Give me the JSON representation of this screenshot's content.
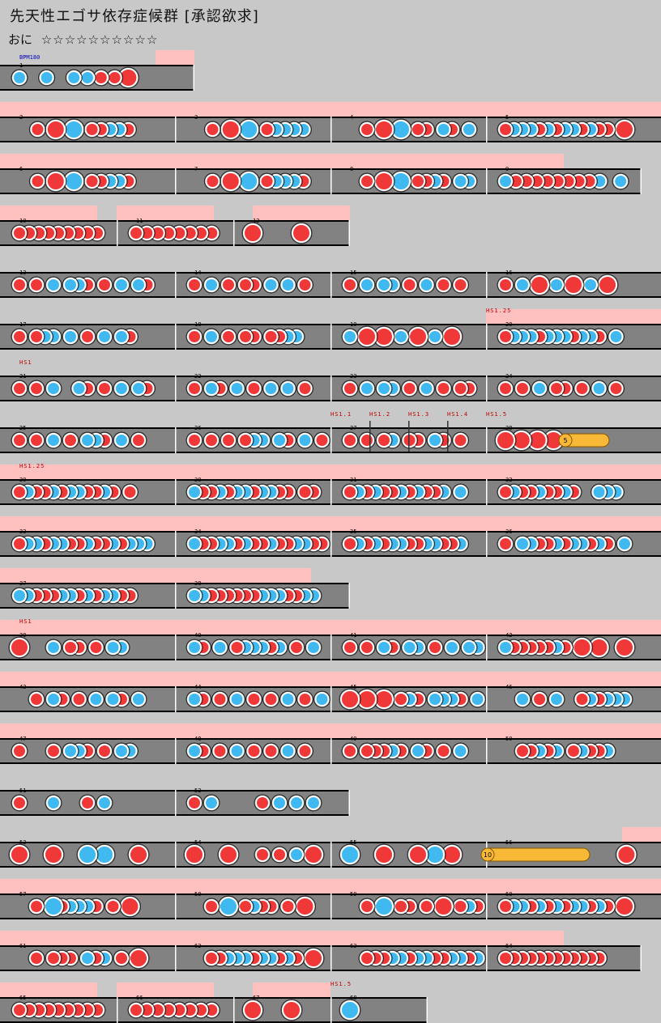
{
  "song": {
    "title": "先天性エゴサ依存症候群 [承認欲求]",
    "difficulty": "おに",
    "stars": "☆☆☆☆☆☆☆☆☆☆"
  },
  "colors": {
    "background": "#c8c8c8",
    "lane": "#828282",
    "gogo": "#ffc0c0",
    "don": "#f03838",
    "ka": "#40b8f0",
    "drumroll": "#f8b838",
    "label": "#000000",
    "bpm_text": "#0000c0",
    "hs_text": "#c00000"
  },
  "annotations": {
    "bpm": "BPM180",
    "hs": [
      "HS1.25",
      "HS1",
      "HS1.1",
      "HS1.2",
      "HS1.3",
      "HS1.4",
      "HS1.5",
      "HS1.25",
      "HS1",
      "HS1.5"
    ]
  },
  "rolls": [
    {
      "count": "5"
    },
    {
      "count": "10"
    }
  ],
  "measures": [
    {
      "n": "1",
      "notes": "k.k.kkddD."
    },
    {
      "n": "2",
      "notes": "..d.D.K.ddkkd.."
    },
    {
      "n": "3",
      "notes": "..d.D.K.dkkkk.."
    },
    {
      "n": "4",
      "notes": "..d.D.K.dd.kd.k."
    },
    {
      "n": "5",
      "notes": "dkkkdkdkkdkdd.D."
    },
    {
      "n": "6",
      "notes": "..d.D.K.ddkkd.."
    },
    {
      "n": "7",
      "notes": "..d.D.K.dkkkd.."
    },
    {
      "n": "8",
      "notes": "..d.D.K.ddkd.kk."
    },
    {
      "n": "9",
      "notes": "kddddddddk.k."
    },
    {
      "n": "10",
      "notes": "ddddddddd."
    },
    {
      "n": "11",
      "notes": "dddddddd."
    },
    {
      "n": "12",
      "notes": "D...D..."
    },
    {
      "n": "13",
      "notes": "d.d.k.kkd.d.k.kd"
    },
    {
      "n": "14",
      "notes": "d.k.d.dd.k.k.d.."
    },
    {
      "n": "15",
      "notes": "d.k.kk.d.k.d.d.."
    },
    {
      "n": "16",
      "notes": "d.k.D.k.D.k.D..."
    },
    {
      "n": "17",
      "notes": "d.dkk.k.d.k.kd.."
    },
    {
      "n": "18",
      "notes": "d.k.d.dd.ddkk..."
    },
    {
      "n": "19",
      "notes": "k.D.D.k.D.k.D..."
    },
    {
      "n": "20",
      "notes": "dkkkdkkkdkkd.k.."
    },
    {
      "n": "21",
      "notes": "d.d.k..kd.d.k.kd"
    },
    {
      "n": "22",
      "notes": "d.kd.k.d.k.k.d.."
    },
    {
      "n": "23",
      "notes": "d.k.kk.d.k.d.dd."
    },
    {
      "n": "24",
      "notes": "d.d.k.dd.d.k.d.."
    },
    {
      "n": "25",
      "notes": "d.d.k.d.kkd.k.d."
    },
    {
      "n": "26",
      "notes": "d.d.d.dkk.kd.k.d"
    },
    {
      "n": "27",
      "notes": "d.d.dk.dd.kd.d.."
    },
    {
      "n": "28",
      "notes": "D.D.D.D.........."
    },
    {
      "n": "29",
      "notes": "dkddkdkkddkd.d.."
    },
    {
      "n": "30",
      "notes": "kddkdkkdkkdd.dd."
    },
    {
      "n": "31",
      "notes": "dkdkddkdkddk.k.."
    },
    {
      "n": "32",
      "notes": "dkddkddkd..kkk.."
    },
    {
      "n": "33",
      "notes": "dkkdkkddkddkdkkk"
    },
    {
      "n": "34",
      "notes": "kddkkdkddkddkkdd"
    },
    {
      "n": "35",
      "notes": "dkdkdkkddkkddk.."
    },
    {
      "n": "36",
      "notes": "d.kkddkdkkdkd.k."
    },
    {
      "n": "37",
      "notes": "kkdddkkdkdkkdd.."
    },
    {
      "n": "38",
      "notes": "kkddddddkkkddkk."
    },
    {
      "n": "39",
      "notes": "D...k.dd.d.kk..."
    },
    {
      "n": "40",
      "notes": "kd.k.dkkkdk.d.k."
    },
    {
      "n": "41",
      "notes": "d.d.kd.kk.d.k.kk"
    },
    {
      "n": "42",
      "notes": "kdddddkd.D.D..D."
    },
    {
      "n": "43",
      "notes": "..d.kd.d.k.kd.k."
    },
    {
      "n": "44",
      "notes": "kd.d.k.d.d.k.d.k"
    },
    {
      "n": "45",
      "notes": "D.D.D.dkd.kkkd.k"
    },
    {
      "n": "46",
      "notes": "..k.d.k..dkdkkk."
    },
    {
      "n": "47",
      "notes": "d...d.kkd.d.kk.."
    },
    {
      "n": "48",
      "notes": "kd.d.k.d.d.k.d.."
    },
    {
      "n": "49",
      "notes": "d.dddkd.kd.d.k.."
    },
    {
      "n": "50",
      "notes": "..ddkdk.dkddk..."
    },
    {
      "n": "51",
      "notes": "d...k...d.k....."
    },
    {
      "n": "52",
      "notes": "d.k.....d.k.k.k."
    },
    {
      "n": "53",
      "notes": "D...D...K.K...D."
    },
    {
      "n": "54",
      "notes": "D...D...d.d.k.D."
    },
    {
      "n": "55",
      "notes": "K...D...D.K.D..."
    },
    {
      "n": "56",
      "notes": "................D."
    },
    {
      "n": "57",
      "notes": "..d.Kdkkkd.d.D.."
    },
    {
      "n": "58",
      "notes": "..d.K.dkdd.d.D.."
    },
    {
      "n": "59",
      "notes": "..d.K.dd.d.D.dkd"
    },
    {
      "n": "60",
      "notes": "dkkdkdkdkkdkd.D."
    },
    {
      "n": "61",
      "notes": "..d.ddd.kdk.d.D."
    },
    {
      "n": "62",
      "notes": "..ddkkkdkkdkd.D."
    },
    {
      "n": "63",
      "notes": "..dddkkdkkddkkdk"
    },
    {
      "n": "64",
      "notes": "dddddddddddd...."
    },
    {
      "n": "65",
      "notes": "ddddddddd."
    },
    {
      "n": "66",
      "notes": "dddddddd."
    },
    {
      "n": "67",
      "notes": "D...D..."
    },
    {
      "n": "68",
      "notes": "K......."
    }
  ]
}
